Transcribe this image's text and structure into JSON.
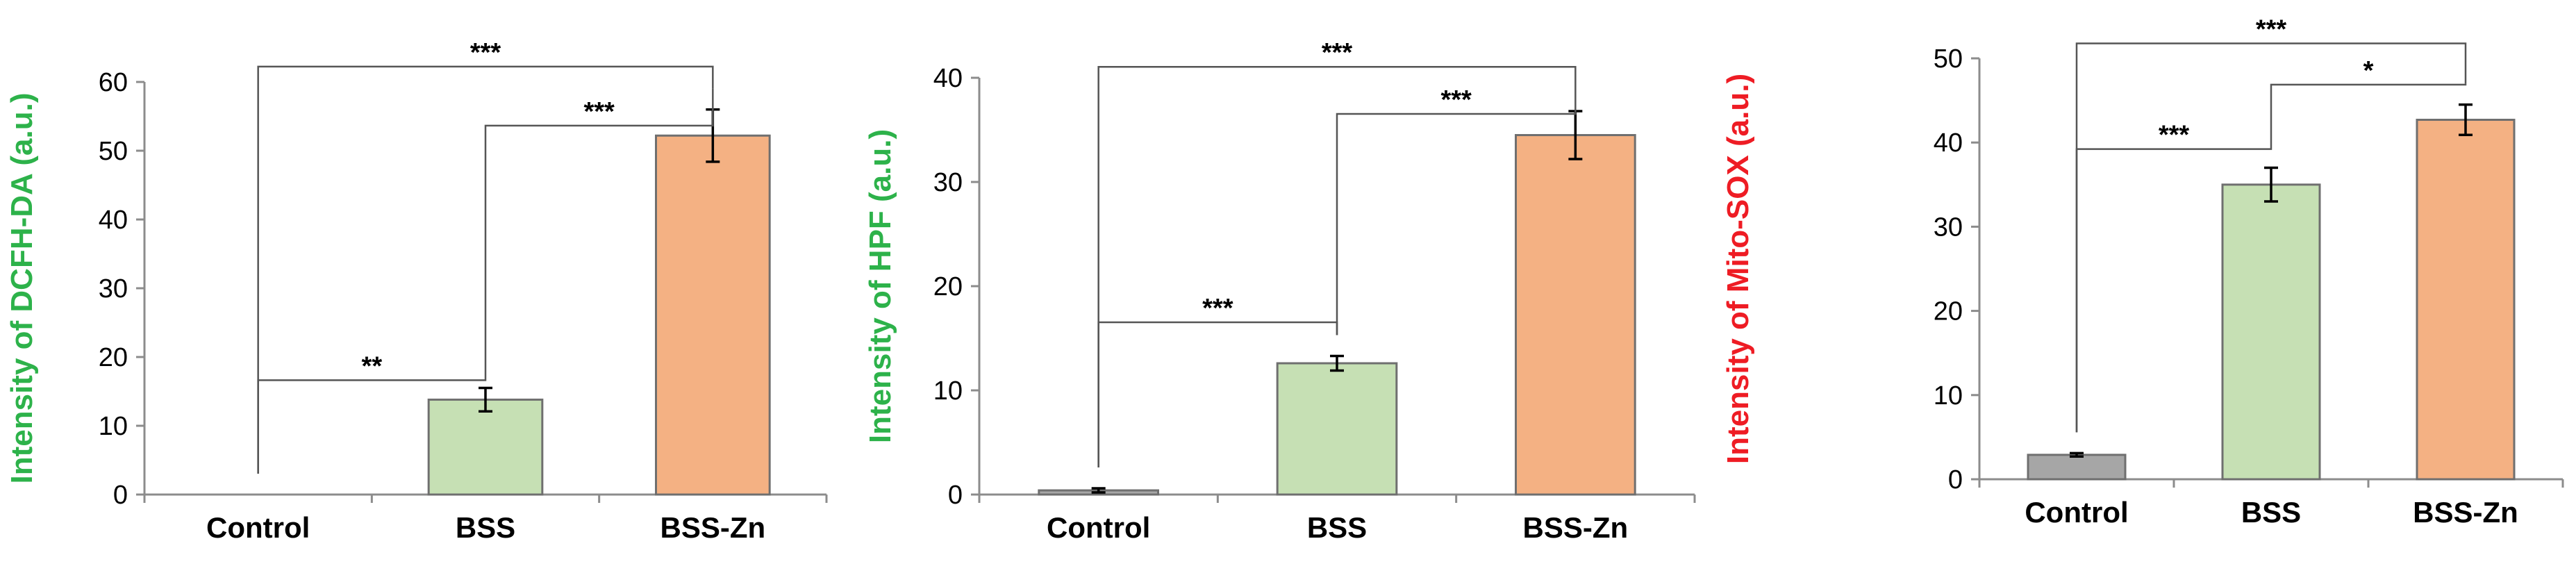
{
  "chart_data": [
    {
      "type": "bar",
      "categories": [
        "Control",
        "BSS",
        "BSS-Zn"
      ],
      "values": [
        0,
        13.8,
        52.2
      ],
      "errors": [
        0,
        1.7,
        3.8
      ],
      "ylabel": "Intensity of DCFH-DA (a.u.)",
      "ylabel_color": "#2db24a",
      "ylim": [
        0,
        60
      ],
      "yticks": [
        0,
        10,
        20,
        30,
        40,
        50,
        60
      ],
      "bar_colors": [
        "#a6a6a6",
        "#c6e0b4",
        "#f4b183"
      ],
      "significance": [
        {
          "from": 0,
          "to": 1,
          "label": "**"
        },
        {
          "from": 1,
          "to": 2,
          "label": "***"
        },
        {
          "from": 0,
          "to": 2,
          "label": "***"
        }
      ]
    },
    {
      "type": "bar",
      "categories": [
        "Control",
        "BSS",
        "BSS-Zn"
      ],
      "values": [
        0.4,
        12.6,
        34.5
      ],
      "errors": [
        0.2,
        0.7,
        2.3
      ],
      "ylabel": "Intensity of HPF (a.u.)",
      "ylabel_color": "#2db24a",
      "ylim": [
        0,
        40
      ],
      "yticks": [
        0,
        10,
        20,
        30,
        40
      ],
      "bar_colors": [
        "#a6a6a6",
        "#c6e0b4",
        "#f4b183"
      ],
      "significance": [
        {
          "from": 0,
          "to": 1,
          "label": "***"
        },
        {
          "from": 1,
          "to": 2,
          "label": "***"
        },
        {
          "from": 0,
          "to": 2,
          "label": "***"
        }
      ]
    },
    {
      "type": "bar",
      "categories": [
        "Control",
        "BSS",
        "BSS-Zn"
      ],
      "values": [
        2.9,
        35.0,
        42.7
      ],
      "errors": [
        0.2,
        2.0,
        1.8
      ],
      "ylabel": "Intensity of Mito-SOX (a.u.)",
      "ylabel_color": "#ee1c24",
      "ylim": [
        0,
        50
      ],
      "yticks": [
        0,
        10,
        20,
        30,
        40,
        50
      ],
      "bar_colors": [
        "#a6a6a6",
        "#c6e0b4",
        "#f4b183"
      ],
      "significance": [
        {
          "from": 0,
          "to": 1,
          "label": "***"
        },
        {
          "from": 1,
          "to": 2,
          "label": "*"
        },
        {
          "from": 0,
          "to": 2,
          "label": "***"
        }
      ]
    }
  ]
}
